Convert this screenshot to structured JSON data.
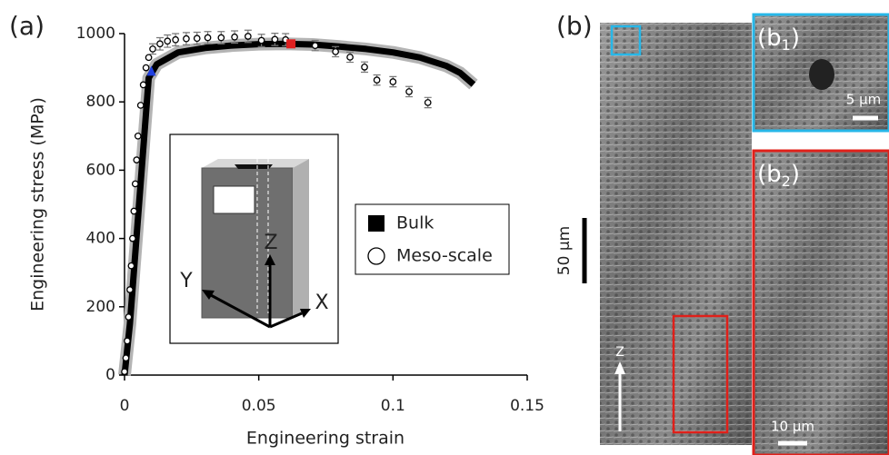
{
  "chart_data": {
    "type": "line",
    "panel_label": "(a)",
    "xlabel": "Engineering strain",
    "ylabel": "Engineering stress (MPa)",
    "xlim": [
      0,
      0.15
    ],
    "xticks": [
      0,
      0.05,
      0.1,
      0.15
    ],
    "ylim": [
      0,
      1000
    ],
    "yticks": [
      0,
      200,
      400,
      600,
      800,
      1000
    ],
    "series": [
      {
        "name": "Bulk",
        "color": "#000000",
        "band_color": "#b4b4b4",
        "marker": "line",
        "x": [
          0,
          0.002,
          0.009,
          0.012,
          0.02,
          0.03,
          0.04,
          0.05,
          0.06,
          0.07,
          0.08,
          0.09,
          0.1,
          0.11,
          0.12,
          0.125,
          0.13
        ],
        "values": [
          0,
          150,
          870,
          910,
          945,
          958,
          965,
          969,
          970,
          968,
          962,
          955,
          945,
          930,
          905,
          885,
          851
        ]
      },
      {
        "name": "Meso-scale",
        "color": "#000000",
        "marker": "circle",
        "x": [
          0,
          0.0005,
          0.001,
          0.0015,
          0.002,
          0.0025,
          0.003,
          0.0035,
          0.004,
          0.0045,
          0.005,
          0.006,
          0.007,
          0.008,
          0.009,
          0.0105,
          0.0132,
          0.016,
          0.019,
          0.023,
          0.027,
          0.031,
          0.036,
          0.041,
          0.046,
          0.051,
          0.056,
          0.06,
          0.071,
          0.0786,
          0.084,
          0.0894,
          0.094,
          0.1,
          0.106,
          0.113
        ],
        "values": [
          10,
          50,
          100,
          170,
          250,
          320,
          400,
          480,
          560,
          630,
          700,
          790,
          850,
          900,
          930,
          955,
          970,
          978,
          982,
          985,
          986,
          988,
          988,
          990,
          992,
          980,
          983,
          982,
          965,
          947,
          931,
          902,
          864,
          859,
          830,
          798
        ],
        "errors": [
          null,
          null,
          null,
          null,
          null,
          null,
          null,
          null,
          null,
          null,
          null,
          null,
          null,
          null,
          null,
          15,
          18,
          18,
          18,
          18,
          18,
          18,
          18,
          18,
          18,
          18,
          18,
          18,
          15,
          15,
          15,
          15,
          15,
          15,
          15,
          15
        ]
      }
    ],
    "points": [
      {
        "x": 0.01,
        "y": 890,
        "color": "#2040e0",
        "shape": "triangle"
      },
      {
        "x": 0.062,
        "y": 970,
        "color": "#e02020",
        "shape": "square"
      }
    ],
    "inset_axes": [
      "Y",
      "Z",
      "X"
    ]
  },
  "figure": {
    "panel_b": "(b)",
    "b1": {
      "pre": "(b",
      "sub": "1",
      "post": ")",
      "scale": "5 µm"
    },
    "b2": {
      "pre": "(b",
      "sub": "2",
      "post": ")",
      "scale": "10 µm"
    },
    "main_scale": "50 µm",
    "build_axis": "Z"
  }
}
